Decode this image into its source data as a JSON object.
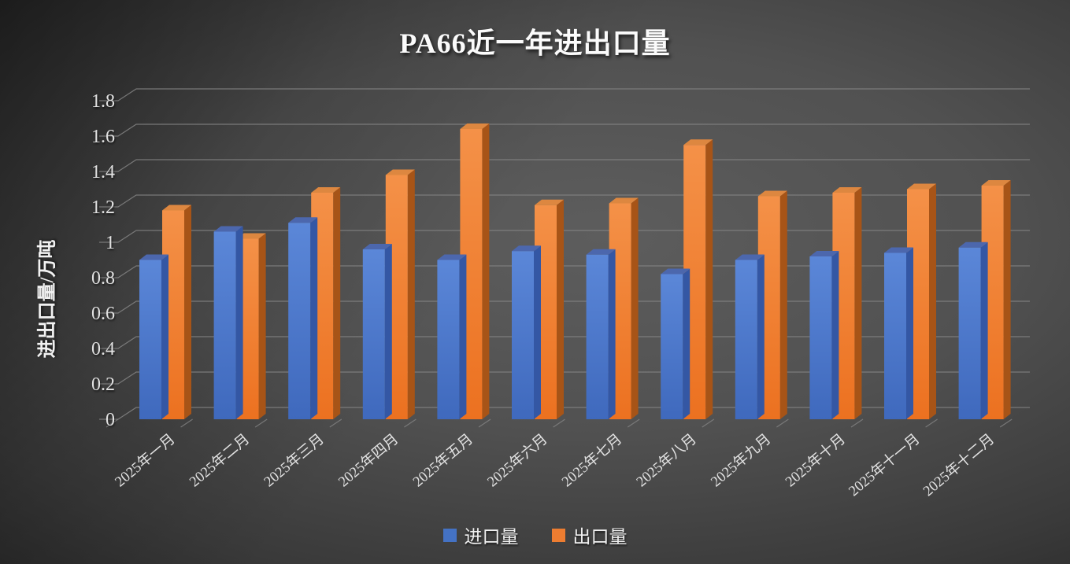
{
  "chart_data": {
    "type": "bar",
    "style": "3d-clustered-column",
    "title": "PA66近一年进出口量",
    "xlabel": "",
    "ylabel": "进出口量/万吨",
    "ylim": [
      0,
      1.8
    ],
    "ytick_step": 0.2,
    "ytick_labels": [
      "0",
      "0.2",
      "0.4",
      "0.6",
      "0.8",
      "1",
      "1.2",
      "1.4",
      "1.6",
      "1.8"
    ],
    "grid": true,
    "legend_position": "bottom",
    "categories": [
      "2025年一月",
      "2025年二月",
      "2025年三月",
      "2025年四月",
      "2025年五月",
      "2025年六月",
      "2025年七月",
      "2025年八月",
      "2025年九月",
      "2025年十月",
      "2025年十一月",
      "2025年十二月"
    ],
    "series": [
      {
        "name": "进口量",
        "color": "#4472C4",
        "faces": {
          "front_top": "#5b87d8",
          "front_bottom": "#3f69bd",
          "top": "#4c67ad",
          "side": "#3457a4"
        },
        "values": [
          0.9,
          1.06,
          1.11,
          0.96,
          0.9,
          0.95,
          0.93,
          0.82,
          0.9,
          0.92,
          0.94,
          0.97
        ]
      },
      {
        "name": "出口量",
        "color": "#ED7D31",
        "faces": {
          "front_top": "#f49148",
          "front_bottom": "#ec7120",
          "top": "#dd8740",
          "side": "#a75417"
        },
        "values": [
          1.18,
          1.02,
          1.28,
          1.38,
          1.64,
          1.21,
          1.22,
          1.55,
          1.26,
          1.28,
          1.3,
          1.32
        ]
      }
    ],
    "axis_text_color": "#e2e2e2",
    "gridline_color": "#848484"
  }
}
